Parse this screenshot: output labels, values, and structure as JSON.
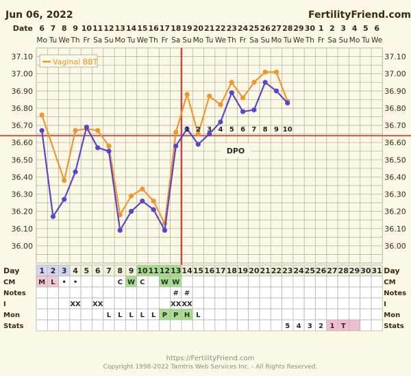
{
  "header": {
    "date": "Jun 06, 2022",
    "brand": "FertilityFriend.com"
  },
  "date_row": {
    "label": "Date",
    "dates": [
      "6",
      "7",
      "8",
      "9",
      "10",
      "11",
      "12",
      "13",
      "14",
      "15",
      "16",
      "17",
      "18",
      "19",
      "20",
      "21",
      "22",
      "23",
      "24",
      "25",
      "26",
      "27",
      "28",
      "29",
      "30",
      "1",
      "2",
      "3",
      "4",
      "5",
      "6"
    ],
    "weekdays": [
      "Mo",
      "Tu",
      "We",
      "Th",
      "Fr",
      "Sa",
      "Su",
      "Mo",
      "Tu",
      "We",
      "Th",
      "Fr",
      "Sa",
      "Su",
      "Mo",
      "Tu",
      "We",
      "Th",
      "Fr",
      "Sa",
      "Su",
      "Mo",
      "Tu",
      "We",
      "Th",
      "Fr",
      "Sa",
      "Su",
      "Mo",
      "Tu",
      "We"
    ]
  },
  "chart_data": {
    "type": "line",
    "ylim": [
      35.9,
      37.15
    ],
    "y_ticks": [
      "36.00",
      "36.10",
      "36.20",
      "36.30",
      "36.40",
      "36.50",
      "36.60",
      "36.70",
      "36.80",
      "36.90",
      "37.00",
      "37.10"
    ],
    "legend": "Vaginal BBT",
    "series": [
      {
        "name": "Vaginal BBT",
        "color": "#f0952f",
        "values": [
          36.76,
          null,
          36.38,
          36.67,
          36.68,
          36.67,
          36.58,
          36.18,
          36.29,
          36.33,
          36.26,
          36.13,
          36.66,
          36.88,
          36.65,
          36.87,
          36.82,
          36.95,
          36.86,
          36.95,
          37.01,
          37.01,
          36.84
        ]
      },
      {
        "color": "#5b45c6",
        "values": [
          36.67,
          36.17,
          36.27,
          36.43,
          36.69,
          36.57,
          36.55,
          36.09,
          36.2,
          36.26,
          36.21,
          36.09,
          36.58,
          36.68,
          36.59,
          36.65,
          36.72,
          36.89,
          36.78,
          36.79,
          36.95,
          36.9,
          36.83
        ]
      }
    ],
    "coverline": 36.64,
    "ovulation_day": 13,
    "dpo_label": "DPO",
    "dpo_numbers": [
      "1",
      "2",
      "3",
      "4",
      "5",
      "6",
      "7",
      "8",
      "9",
      "10"
    ]
  },
  "rows": {
    "labels": [
      "Day",
      "CM",
      "Notes",
      "I",
      "Mon",
      "Stats"
    ],
    "days": [
      "1",
      "2",
      "3",
      "4",
      "5",
      "6",
      "7",
      "8",
      "9",
      "10",
      "11",
      "12",
      "13",
      "14",
      "15",
      "16",
      "17",
      "18",
      "19",
      "20",
      "21",
      "22",
      "23",
      "24",
      "25",
      "26",
      "27",
      "28",
      "29",
      "30",
      "31"
    ],
    "cm": [
      "M",
      "L",
      "•",
      "•",
      "",
      "",
      "",
      "C",
      "W",
      "C",
      "",
      "W",
      "W",
      "",
      "",
      "",
      "",
      "",
      "",
      "",
      "",
      "",
      "",
      "",
      "",
      "",
      "",
      "",
      "",
      "",
      ""
    ],
    "notes": [
      "",
      "",
      "",
      "",
      "",
      "",
      "",
      "",
      "",
      "",
      "",
      "",
      "#",
      "#",
      "",
      "",
      "",
      "",
      "",
      "",
      "",
      "",
      "",
      "",
      "",
      "",
      "",
      "",
      "",
      "",
      ""
    ],
    "intercourse": [
      "",
      "",
      "",
      "XX",
      "",
      "XX",
      "",
      "",
      "",
      "",
      "",
      "",
      "XX",
      "XX",
      "",
      "",
      "",
      "",
      "",
      "",
      "",
      "",
      "",
      "",
      "",
      "",
      "",
      "",
      "",
      "",
      ""
    ],
    "monitor": [
      "",
      "",
      "",
      "",
      "",
      "",
      "L",
      "L",
      "L",
      "L",
      "L",
      "P",
      "P",
      "H",
      "L",
      "",
      "",
      "",
      "",
      "",
      "",
      "",
      "",
      "",
      "",
      "",
      "",
      "",
      "",
      "",
      ""
    ],
    "stats": [
      "",
      "",
      "",
      "",
      "",
      "",
      "",
      "",
      "",
      "",
      "",
      "",
      "",
      "",
      "",
      "",
      "",
      "",
      "",
      "",
      "",
      "",
      "5",
      "4",
      "3",
      "2",
      "1",
      "T",
      "",
      "",
      ""
    ]
  },
  "footer": {
    "url": "https://FertilityFriend.com",
    "copyright": "Copyright 1998-2022 Tamtris Web Services Inc. - All Rights Reserved."
  },
  "colors": {
    "bg": "#fbf8e6",
    "grid": "#b5b5a2",
    "coverline": "#cc5a4a",
    "ovulation": "#c84545",
    "green": "#a6dd8f",
    "pink": "#efbfd0",
    "period_pink": "#f3c9d8"
  }
}
